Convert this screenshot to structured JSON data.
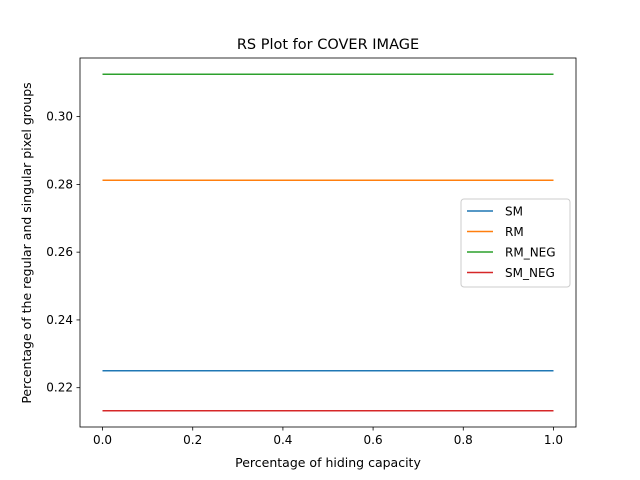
{
  "chart_data": {
    "type": "line",
    "title": "RS Plot for COVER IMAGE",
    "xlabel": "Percentage of hiding capacity",
    "ylabel": "Percentage of the regular and singular pixel groups",
    "xlim": [
      -0.05,
      1.05
    ],
    "ylim": [
      0.2084,
      0.3173
    ],
    "xticks": [
      0.0,
      0.2,
      0.4,
      0.6,
      0.8,
      1.0
    ],
    "xtick_labels": [
      "0.0",
      "0.2",
      "0.4",
      "0.6",
      "0.8",
      "1.0"
    ],
    "yticks": [
      0.22,
      0.24,
      0.26,
      0.28,
      0.3
    ],
    "ytick_labels": [
      "0.22",
      "0.24",
      "0.26",
      "0.28",
      "0.30"
    ],
    "grid": false,
    "legend_position": "center-right",
    "series": [
      {
        "name": "SM",
        "color": "#1f77b4",
        "x": [
          0.0,
          1.0
        ],
        "y": [
          0.225,
          0.225
        ]
      },
      {
        "name": "RM",
        "color": "#ff7f0e",
        "x": [
          0.0,
          1.0
        ],
        "y": [
          0.2812,
          0.2812
        ]
      },
      {
        "name": "RM_NEG",
        "color": "#2ca02c",
        "x": [
          0.0,
          1.0
        ],
        "y": [
          0.3125,
          0.3125
        ]
      },
      {
        "name": "SM_NEG",
        "color": "#d62728",
        "x": [
          0.0,
          1.0
        ],
        "y": [
          0.2132,
          0.2132
        ]
      }
    ]
  }
}
